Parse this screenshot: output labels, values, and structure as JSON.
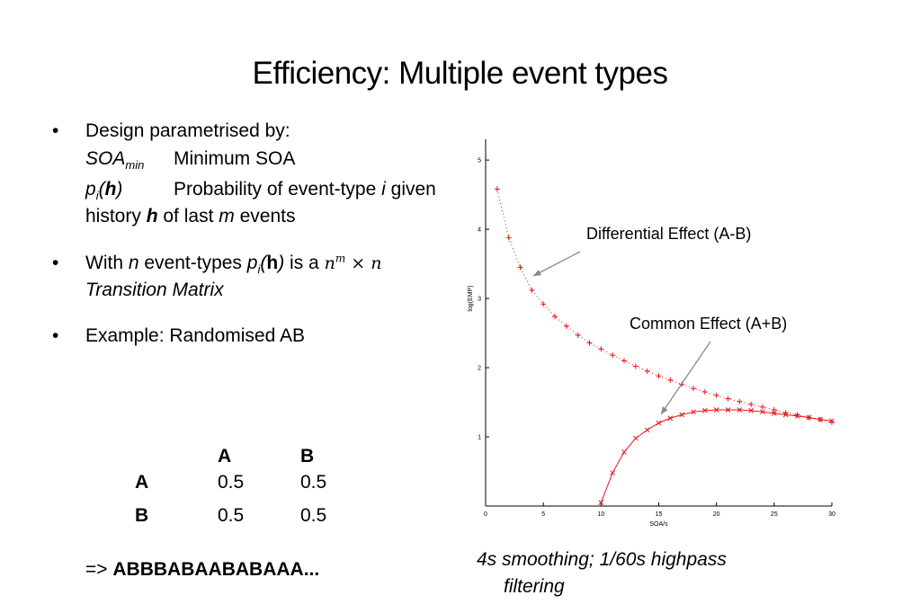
{
  "title": "Efficiency: Multiple event types",
  "bullets": {
    "b1_text": "Design parametrised by:",
    "soa_term": "SOA",
    "soa_sub": "min",
    "soa_def": "Minimum SOA",
    "p_term_p": "p",
    "p_term_sub": "i",
    "p_term_h": "h",
    "p_def_1": "Probability of event-type",
    "p_def_i": "i",
    "p_def_2": "given history",
    "p_def_h": "h",
    "p_def_3": "of last",
    "p_def_m": "m",
    "p_def_4": "events",
    "b2_with": "With",
    "b2_n": "n",
    "b2_mid": "event-types",
    "b2_p": "p",
    "b2_sub": "i",
    "b2_h": "h",
    "b2_isa": "is a",
    "b2_math_n": "n",
    "b2_math_m": "m",
    "b2_math_times": "×",
    "b2_math_n2": "n",
    "b2_tm": "Transition Matrix",
    "b3_text": "Example: Randomised AB"
  },
  "matrix": {
    "col_headers": [
      "A",
      "B"
    ],
    "rows": [
      {
        "label": "A",
        "values": [
          "0.5",
          "0.5"
        ]
      },
      {
        "label": "B",
        "values": [
          "0.5",
          "0.5"
        ]
      }
    ]
  },
  "result": {
    "prefix": "=>",
    "sequence": "ABBBABAABABAAA..."
  },
  "annotations": {
    "differential": "Differential Effect (A-B)",
    "common": "Common Effect (A+B)"
  },
  "caption": {
    "line1": "4s smoothing; 1/60s highpass",
    "line2": "filtering"
  },
  "chart_data": {
    "type": "line",
    "xlabel": "SOA/s",
    "ylabel": "log(EMP)",
    "xlim": [
      0,
      30
    ],
    "ylim": [
      0,
      5.3
    ],
    "xticks": [
      0,
      5,
      10,
      15,
      20,
      25,
      30
    ],
    "yticks": [
      1,
      2,
      3,
      4,
      5
    ],
    "grid": false,
    "color": "#e8141b",
    "series": [
      {
        "x": [
          1,
          2,
          3,
          4,
          5,
          6,
          7,
          8,
          9,
          10,
          11,
          12,
          13,
          14,
          15,
          16,
          17,
          18,
          19,
          20,
          21,
          22,
          23,
          24,
          25,
          26,
          27,
          28,
          29,
          30
        ],
        "values": [
          4.58,
          3.88,
          3.45,
          3.12,
          2.92,
          2.74,
          2.6,
          2.47,
          2.36,
          2.27,
          2.18,
          2.1,
          2.02,
          1.95,
          1.88,
          1.82,
          1.76,
          1.7,
          1.65,
          1.6,
          1.55,
          1.51,
          1.47,
          1.43,
          1.39,
          1.35,
          1.32,
          1.28,
          1.25,
          1.21
        ]
      },
      {
        "x": [
          10,
          11,
          12,
          13,
          14,
          15,
          16,
          17,
          18,
          19,
          20,
          21,
          22,
          23,
          24,
          25,
          26,
          27,
          28,
          29,
          30
        ],
        "values": [
          0.05,
          0.48,
          0.78,
          0.98,
          1.1,
          1.2,
          1.27,
          1.32,
          1.36,
          1.38,
          1.39,
          1.39,
          1.39,
          1.38,
          1.36,
          1.34,
          1.32,
          1.3,
          1.28,
          1.25,
          1.23
        ]
      }
    ]
  }
}
